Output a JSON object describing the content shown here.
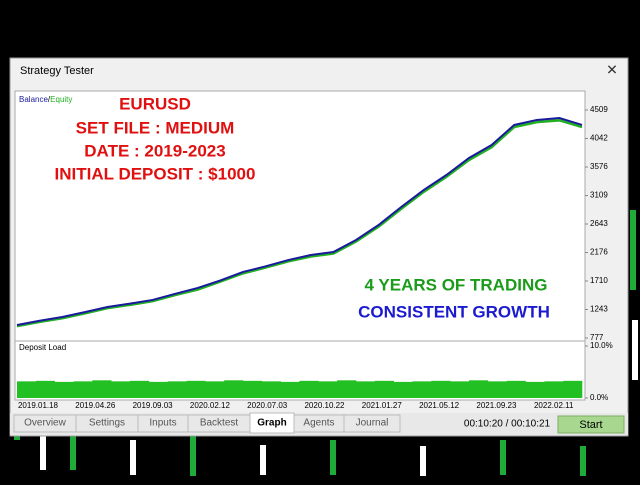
{
  "window": {
    "title": "Strategy Tester"
  },
  "overlay": {
    "lines": [
      "EURUSD",
      "SET FILE : MEDIUM",
      "DATE : 2019-2023",
      "INITIAL DEPOSIT : $1000"
    ],
    "headline": "4 YEARS OF TRADING",
    "subline": "CONSISTENT GROWTH"
  },
  "chart_data": {
    "type": "line",
    "legend_separator": "/",
    "series": [
      {
        "name": "Balance",
        "color": "#1a1a9c",
        "values": [
          990,
          1060,
          1121,
          1200,
          1285,
          1340,
          1400,
          1500,
          1596,
          1720,
          1858,
          1950,
          2053,
          2136,
          2185,
          2381,
          2627,
          2921,
          3200,
          3445,
          3724,
          3936,
          4264,
          4346,
          4378,
          4264
        ]
      },
      {
        "name": "Equity",
        "color": "#22b022",
        "values": [
          970,
          1040,
          1100,
          1180,
          1265,
          1320,
          1380,
          1480,
          1570,
          1700,
          1835,
          1930,
          2030,
          2110,
          2160,
          2355,
          2600,
          2890,
          3170,
          3415,
          3690,
          3900,
          4230,
          4310,
          4340,
          4230
        ]
      }
    ],
    "ylim": [
      777,
      4509
    ],
    "yticks": [
      777,
      1243,
      1710,
      2176,
      2643,
      3109,
      3576,
      4042,
      4509
    ],
    "x_labels": [
      "2019.01.18",
      "2019.04.26",
      "2019.09.03",
      "2020.02.12",
      "2020.07.03",
      "2020.10.22",
      "2021.01.27",
      "2021.05.12",
      "2021.09.23",
      "2022.02.11"
    ]
  },
  "deposit_load": {
    "type": "bar",
    "title": "Deposit Load",
    "color": "#22c022",
    "ylim": [
      0,
      10
    ],
    "yticks": [
      {
        "value": 10,
        "label": "10.0%"
      },
      {
        "value": 0,
        "label": "0.0%"
      }
    ],
    "values": [
      3.2,
      3.3,
      3.1,
      3.2,
      3.4,
      3.2,
      3.3,
      3.1,
      3.2,
      3.3,
      3.2,
      3.4,
      3.3,
      3.2,
      3.1,
      3.3,
      3.2,
      3.4,
      3.2,
      3.3,
      3.1,
      3.2,
      3.3,
      3.2,
      3.4,
      3.2,
      3.3,
      3.1,
      3.2,
      3.3
    ]
  },
  "tabs": [
    "Overview",
    "Settings",
    "Inputs",
    "Backtest",
    "Graph",
    "Agents",
    "Journal"
  ],
  "active_tab": 4,
  "status": {
    "time": "00:10:20 / 00:10:21",
    "button": "Start"
  }
}
